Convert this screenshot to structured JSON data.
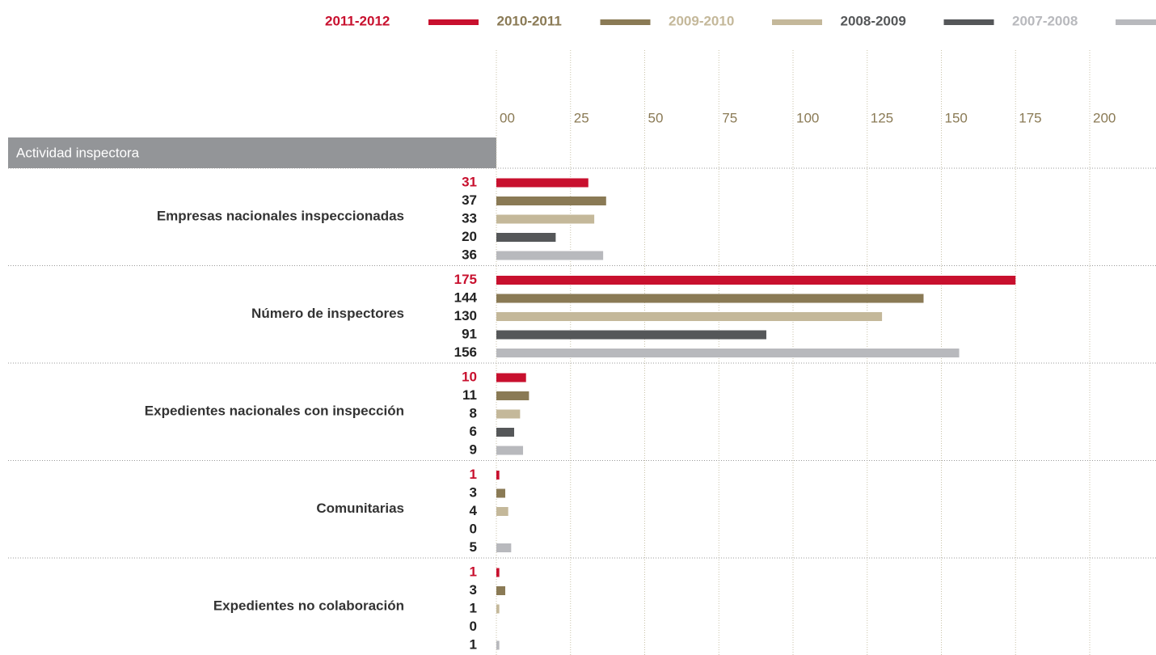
{
  "chart_data": {
    "type": "hbar",
    "title": "Actividad inspectora",
    "categories": [
      "Empresas nacionales inspeccionadas",
      "Número de inspectores",
      "Expedientes nacionales con inspección",
      "Comunitarias",
      "Expedientes no colaboración"
    ],
    "series": [
      {
        "name": "2011-2012",
        "color": "#c8102e",
        "values": [
          31,
          175,
          10,
          1,
          1
        ]
      },
      {
        "name": "2010-2011",
        "color": "#8a7a55",
        "values": [
          37,
          144,
          11,
          3,
          3
        ]
      },
      {
        "name": "2009-2010",
        "color": "#c4b89a",
        "values": [
          33,
          130,
          8,
          4,
          1
        ]
      },
      {
        "name": "2008-2009",
        "color": "#555759",
        "values": [
          20,
          91,
          6,
          0,
          0
        ]
      },
      {
        "name": "2007-2008",
        "color": "#b8b9bd",
        "values": [
          36,
          156,
          9,
          5,
          1
        ]
      }
    ],
    "xlim": [
      0,
      200
    ],
    "xticks": [
      {
        "value": 0,
        "label": "00"
      },
      25,
      50,
      75,
      100,
      125,
      150,
      175,
      200
    ],
    "grid": true
  }
}
